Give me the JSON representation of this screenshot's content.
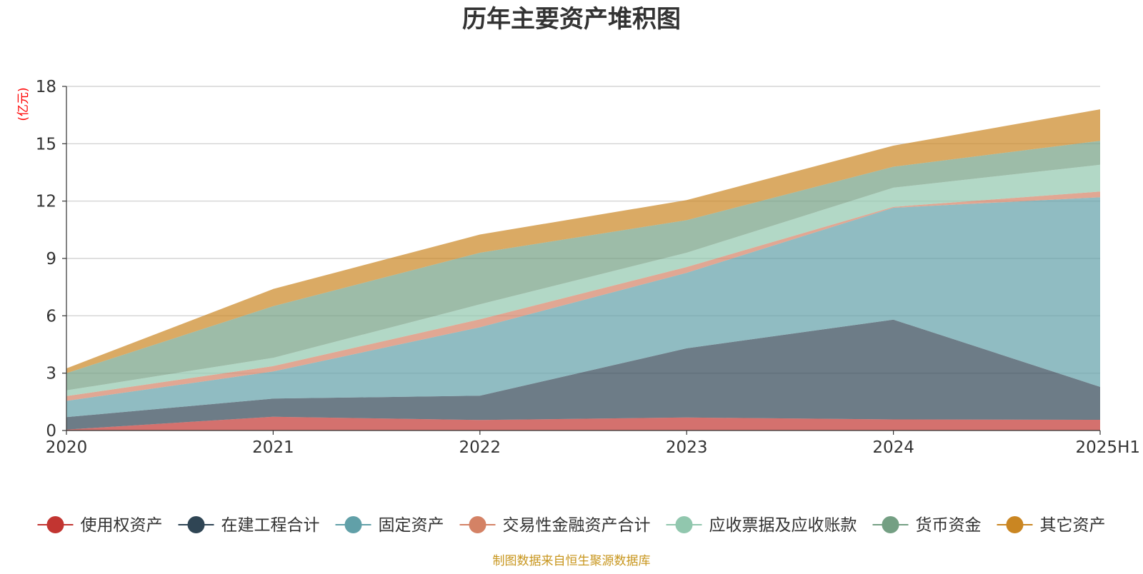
{
  "chart_data": {
    "type": "area",
    "stacked": true,
    "title": "历年主要资产堆积图",
    "ylabel": "(亿元)",
    "xlabel": "",
    "categories": [
      "2020",
      "2021",
      "2022",
      "2023",
      "2024",
      "2025H1"
    ],
    "ylim": [
      0,
      18
    ],
    "yticks": [
      0,
      3,
      6,
      9,
      12,
      15,
      18
    ],
    "grid": true,
    "legend_position": "bottom",
    "series": [
      {
        "name": "使用权资产",
        "color": "#c23531",
        "values": [
          0.05,
          0.72,
          0.55,
          0.68,
          0.58,
          0.56
        ]
      },
      {
        "name": "在建工程合计",
        "color": "#2f4554",
        "values": [
          0.65,
          0.95,
          1.27,
          3.62,
          5.22,
          1.72
        ]
      },
      {
        "name": "固定资产",
        "color": "#61a0a8",
        "values": [
          0.85,
          1.42,
          3.58,
          3.95,
          5.85,
          9.92
        ]
      },
      {
        "name": "交易性金融资产合计",
        "color": "#d48265",
        "values": [
          0.25,
          0.28,
          0.42,
          0.3,
          0.05,
          0.3
        ]
      },
      {
        "name": "应收票据及应收账款",
        "color": "#91c7ae",
        "values": [
          0.3,
          0.43,
          0.78,
          0.75,
          1.0,
          1.4
        ]
      },
      {
        "name": "货币资金",
        "color": "#749f83",
        "values": [
          0.9,
          2.7,
          2.7,
          1.7,
          1.1,
          1.25
        ]
      },
      {
        "name": "其它资产",
        "color": "#ca8622",
        "values": [
          0.25,
          0.9,
          0.95,
          1.05,
          1.1,
          1.65
        ]
      }
    ],
    "footnote": "制图数据来自恒生聚源数据库",
    "colors": {
      "title": "#333333",
      "ylabel": "#ff0000",
      "axis": "#333333",
      "grid": "#cccccc",
      "footnote": "#c8961e"
    }
  }
}
